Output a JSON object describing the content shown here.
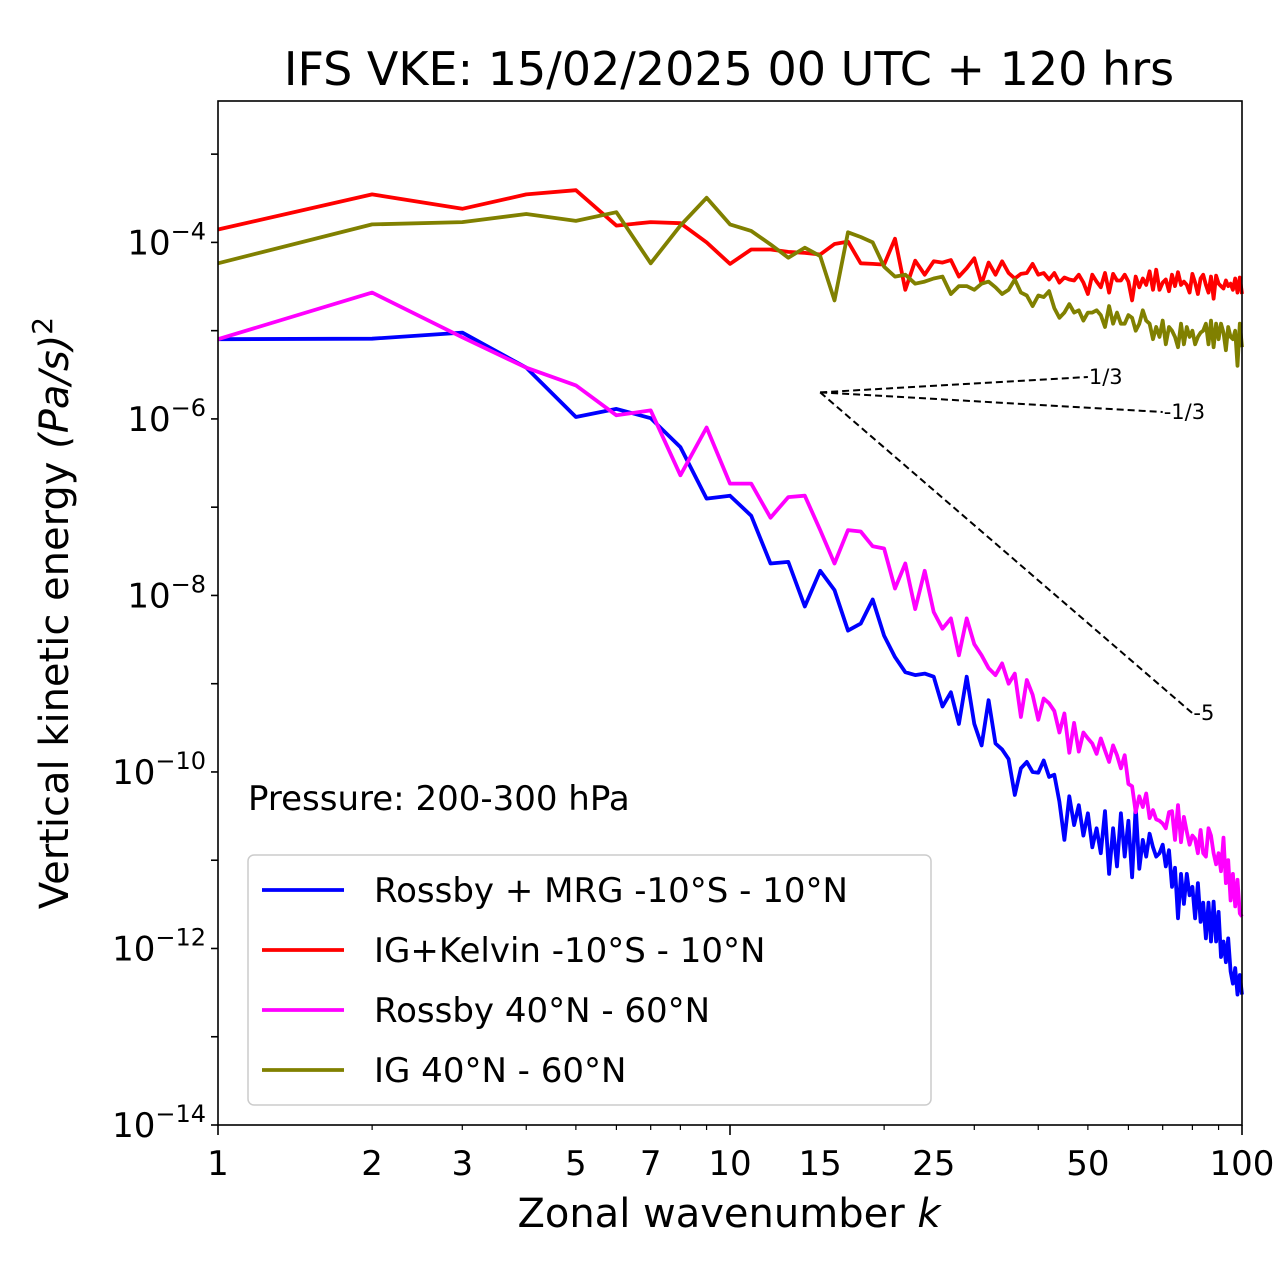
{
  "chart_data": {
    "type": "line",
    "title": "IFS VKE: 15/02/2025 00 UTC + 120 hrs",
    "xlabel": "Zonal wavenumber",
    "xlabel_italic": "k",
    "ylabel": "Vertical kinetic energy",
    "ylabel_unit": "(Pa/s)",
    "ylabel_sup": "2",
    "annotation": "Pressure: 200-300 hPa",
    "x_scale": "log",
    "y_scale": "log",
    "xlim": [
      1,
      100
    ],
    "ylim": [
      1e-14,
      0.004
    ],
    "x_ticks": [
      1,
      2,
      3,
      5,
      7,
      10,
      15,
      25,
      50,
      100
    ],
    "x_tick_labels": [
      "1",
      "2",
      "3",
      "5",
      "7",
      "10",
      "15",
      "25",
      "50",
      "100"
    ],
    "y_ticks": [
      -14,
      -12,
      -10,
      -8,
      -6,
      -4
    ],
    "y_tick_base": "10",
    "y_tick_exponents": [
      "−14",
      "−12",
      "−10",
      "−8",
      "−6",
      "−4"
    ],
    "grid": false,
    "legend_position": "lower-left",
    "series": [
      {
        "name": "Rossby + MRG -10°S - 10°N",
        "color": "#0000ff",
        "x": [
          1,
          2,
          3,
          4,
          5,
          6,
          7,
          8,
          9,
          10,
          11,
          12,
          13,
          14,
          15,
          16,
          17,
          18,
          19,
          20,
          21,
          22,
          23,
          24,
          25,
          26,
          27,
          28,
          29,
          30,
          31,
          32,
          33,
          34,
          35,
          36,
          37,
          38,
          39,
          40,
          41,
          42,
          43,
          44,
          45,
          46,
          47,
          48,
          49,
          50,
          51,
          52,
          53,
          54,
          55,
          56,
          57,
          58,
          59,
          60,
          61,
          62,
          63,
          64,
          65,
          66,
          67,
          68,
          69,
          70,
          71,
          72,
          73,
          74,
          75,
          76,
          77,
          78,
          79,
          80,
          81,
          82,
          83,
          84,
          85,
          86,
          87,
          88,
          89,
          90,
          91,
          92,
          93,
          94,
          95,
          96,
          97,
          98,
          99,
          100
        ],
        "y": [
          8e-06,
          8.1e-06,
          9.5e-06,
          3.8e-06,
          1.05e-06,
          1.3e-06,
          1.02e-06,
          4.8e-07,
          1.25e-07,
          1.35e-07,
          8e-08,
          2.3e-08,
          2.4e-08,
          7.5e-09,
          1.9e-08,
          1.15e-08,
          4e-09,
          4.8e-09,
          9e-09,
          3.5e-09,
          2e-09,
          1.35e-09,
          1.25e-09,
          1.3e-09,
          1.2e-09,
          5.5e-10,
          8e-10,
          3.5e-10,
          1.2e-09,
          3.5e-10,
          2e-10,
          6.5e-10,
          2.1e-10,
          1.8e-10,
          1.4e-10,
          5.5e-11,
          1.1e-10,
          1.3e-10,
          1e-10,
          9.8e-11,
          1.35e-10,
          8.8e-11,
          9.3e-11,
          4.6e-11,
          1.7e-11,
          5.3e-11,
          2.5e-11,
          4.2e-11,
          1.9e-11,
          3.4e-11,
          1.4e-11,
          2.3e-11,
          1.2e-11,
          3.6e-11,
          7e-12,
          2.3e-11,
          8.5e-12,
          3.4e-11,
          1.1e-11,
          2.8e-11,
          6.4e-12,
          4.1e-11,
          8e-12,
          1.7e-11,
          1.1e-11,
          2e-11,
          1.4e-11,
          1.1e-11,
          1.2e-11,
          1.5e-11,
          8.5e-12,
          1.3e-11,
          5e-12,
          8.2e-12,
          2.2e-12,
          7e-12,
          3.2e-12,
          7e-12,
          4e-12,
          5e-12,
          2.2e-12,
          5.5e-12,
          2e-12,
          3.3e-12,
          1.3e-12,
          3.3e-12,
          1.2e-12,
          3.4e-12,
          1.2e-12,
          2.6e-12,
          8e-13,
          1.2e-12,
          7e-13,
          1.3e-12,
          5.5e-13,
          4e-13,
          6e-13,
          3e-13,
          5e-13,
          3e-13
        ]
      },
      {
        "name": "IG+Kelvin -10°S - 10°N",
        "color": "#ff0000",
        "x": [
          1,
          2,
          3,
          4,
          5,
          6,
          7,
          8,
          9,
          10,
          11,
          12,
          13,
          14,
          15,
          16,
          17,
          18,
          19,
          20,
          21,
          22,
          23,
          24,
          25,
          26,
          27,
          28,
          29,
          30,
          31,
          32,
          33,
          34,
          35,
          36,
          37,
          38,
          39,
          40,
          41,
          42,
          43,
          44,
          45,
          46,
          47,
          48,
          49,
          50,
          51,
          52,
          53,
          54,
          55,
          56,
          57,
          58,
          59,
          60,
          61,
          62,
          63,
          64,
          65,
          66,
          67,
          68,
          69,
          70,
          71,
          72,
          73,
          74,
          75,
          76,
          77,
          78,
          79,
          80,
          81,
          82,
          83,
          84,
          85,
          86,
          87,
          88,
          89,
          90,
          91,
          92,
          93,
          94,
          95,
          96,
          97,
          98,
          99,
          100
        ],
        "y": [
          0.00014,
          0.00035,
          0.00024,
          0.00035,
          0.00039,
          0.000155,
          0.00017,
          0.000165,
          0.0001,
          5.7e-05,
          8.3e-05,
          8.3e-05,
          7.8e-05,
          7.6e-05,
          7.3e-05,
          9.6e-05,
          0.000102,
          5.8e-05,
          5.7e-05,
          5.6e-05,
          0.00011,
          2.9e-05,
          6.2e-05,
          4.3e-05,
          6.1e-05,
          5.9e-05,
          6.3e-05,
          4.1e-05,
          5.1e-05,
          6.6e-05,
          3.4e-05,
          5.9e-05,
          4.3e-05,
          6.1e-05,
          4.5e-05,
          3.9e-05,
          4.4e-05,
          4.5e-05,
          5.7e-05,
          4.3e-05,
          4.5e-05,
          3.8e-05,
          4.5e-05,
          3.5e-05,
          4e-05,
          3.8e-05,
          3.7e-05,
          4.3e-05,
          3.5e-05,
          2.6e-05,
          4.3e-05,
          3.6e-05,
          3.1e-05,
          4.5e-05,
          2.7e-05,
          4.4e-05,
          3.7e-05,
          3.7e-05,
          4.3e-05,
          3.6e-05,
          2.2e-05,
          4.1e-05,
          3.1e-05,
          3.9e-05,
          3.3e-05,
          4.7e-05,
          2.9e-05,
          4.9e-05,
          2.9e-05,
          3.5e-05,
          3.8e-05,
          2.8e-05,
          4.3e-05,
          3.2e-05,
          4.6e-05,
          3.3e-05,
          3.6e-05,
          3.3e-05,
          2.7e-05,
          4.4e-05,
          3.5e-05,
          2.6e-05,
          3.9e-05,
          4.3e-05,
          3.3e-05,
          2.7e-05,
          4.1e-05,
          2.3e-05,
          4.2e-05,
          3.4e-05,
          3.2e-05,
          3e-05,
          3.7e-05,
          3.2e-05,
          3.4e-05,
          2.9e-05,
          3.9e-05,
          2.7e-05,
          4e-05,
          2.6e-05
        ]
      },
      {
        "name": "Rossby 40°N - 60°N",
        "color": "#ff00ff",
        "x": [
          1,
          2,
          3,
          4,
          5,
          6,
          7,
          8,
          9,
          10,
          11,
          12,
          13,
          14,
          15,
          16,
          17,
          18,
          19,
          20,
          21,
          22,
          23,
          24,
          25,
          26,
          27,
          28,
          29,
          30,
          31,
          32,
          33,
          34,
          35,
          36,
          37,
          38,
          39,
          40,
          41,
          42,
          43,
          44,
          45,
          46,
          47,
          48,
          49,
          50,
          51,
          52,
          53,
          54,
          55,
          56,
          57,
          58,
          59,
          60,
          61,
          62,
          63,
          64,
          65,
          66,
          67,
          68,
          69,
          70,
          71,
          72,
          73,
          74,
          75,
          76,
          77,
          78,
          79,
          80,
          81,
          82,
          83,
          84,
          85,
          86,
          87,
          88,
          89,
          90,
          91,
          92,
          93,
          94,
          95,
          96,
          97,
          98,
          99,
          100
        ],
        "y": [
          8e-06,
          2.7e-05,
          8.4e-06,
          3.8e-06,
          2.4e-06,
          1.1e-06,
          1.25e-06,
          2.3e-07,
          8e-07,
          1.85e-07,
          1.85e-07,
          7.6e-08,
          1.3e-07,
          1.35e-07,
          5.5e-08,
          2.3e-08,
          5.5e-08,
          5.3e-08,
          3.6e-08,
          3.4e-08,
          1.2e-08,
          2.3e-08,
          7e-09,
          1.9e-08,
          6.5e-09,
          4.2e-09,
          5.5e-09,
          2.1e-09,
          5.5e-09,
          2.8e-09,
          2.1e-09,
          1.5e-09,
          1.25e-09,
          1.7e-09,
          1e-09,
          1.3e-09,
          4.2e-10,
          1.1e-09,
          7.5e-10,
          3.9e-10,
          6.8e-10,
          6e-10,
          4.9e-10,
          2.8e-10,
          4.6e-10,
          1.65e-10,
          3.6e-10,
          1.7e-10,
          2.8e-10,
          2.4e-10,
          2.1e-10,
          1.6e-10,
          2.4e-10,
          1.75e-10,
          1.3e-10,
          2e-10,
          1.55e-10,
          1.1e-10,
          1.55e-10,
          7.3e-11,
          6.9e-11,
          3.5e-11,
          5.3e-11,
          4e-11,
          5.7e-11,
          3e-11,
          3.7e-11,
          2.9e-11,
          2.8e-11,
          2.6e-11,
          2.3e-11,
          3.5e-11,
          3.6e-11,
          1.7e-11,
          4.2e-11,
          1.6e-11,
          3.1e-11,
          2.1e-11,
          1.5e-11,
          1.9e-11,
          1.75e-11,
          1.2e-11,
          2.2e-11,
          1.2e-11,
          1.1e-11,
          2.3e-11,
          1.9e-11,
          1.2e-11,
          9e-12,
          1.2e-11,
          7.5e-12,
          1.8e-11,
          5.5e-12,
          1e-11,
          3.5e-12,
          7e-12,
          3e-12,
          6e-12,
          2.5e-12,
          2.3e-12
        ]
      },
      {
        "name": "IG 40°N - 60°N",
        "color": "#808000",
        "x": [
          1,
          2,
          3,
          4,
          5,
          6,
          7,
          8,
          9,
          10,
          11,
          12,
          13,
          14,
          15,
          16,
          17,
          18,
          19,
          20,
          21,
          22,
          23,
          24,
          25,
          26,
          27,
          28,
          29,
          30,
          31,
          32,
          33,
          34,
          35,
          36,
          37,
          38,
          39,
          40,
          41,
          42,
          43,
          44,
          45,
          46,
          47,
          48,
          49,
          50,
          51,
          52,
          53,
          54,
          55,
          56,
          57,
          58,
          59,
          60,
          61,
          62,
          63,
          64,
          65,
          66,
          67,
          68,
          69,
          70,
          71,
          72,
          73,
          74,
          75,
          76,
          77,
          78,
          79,
          80,
          81,
          82,
          83,
          84,
          85,
          86,
          87,
          88,
          89,
          90,
          91,
          92,
          93,
          94,
          95,
          96,
          97,
          98,
          99,
          100
        ],
        "y": [
          5.8e-05,
          0.00016,
          0.00017,
          0.00021,
          0.000175,
          0.00022,
          5.8e-05,
          0.000155,
          0.00032,
          0.00016,
          0.000135,
          9.5e-05,
          6.7e-05,
          8.7e-05,
          7e-05,
          2.2e-05,
          0.00013,
          0.000115,
          0.0001,
          5.3e-05,
          4.1e-05,
          4.3e-05,
          3.4e-05,
          3.6e-05,
          3.9e-05,
          4.1e-05,
          2.6e-05,
          3.2e-05,
          3.2e-05,
          2.9e-05,
          3.4e-05,
          3.6e-05,
          3.1e-05,
          2.6e-05,
          2.9e-05,
          3.8e-05,
          2.7e-05,
          2.5e-05,
          1.9e-05,
          2.5e-05,
          2.4e-05,
          2.8e-05,
          1.8e-05,
          1.4e-05,
          1.6e-05,
          2e-05,
          1.6e-05,
          1.7e-05,
          1.3e-05,
          1.6e-05,
          1.6e-05,
          1.7e-05,
          1.5e-05,
          1.1e-05,
          1.9e-05,
          1.2e-05,
          1.6e-05,
          1.2e-05,
          1.2e-05,
          1.5e-05,
          1.4e-05,
          1e-05,
          1.2e-05,
          1.7e-05,
          1.3e-05,
          1.2e-05,
          8e-06,
          1.1e-05,
          8.5e-06,
          1.3e-05,
          7e-06,
          1.1e-05,
          1e-05,
          8.5e-06,
          6.5e-06,
          1.2e-05,
          7e-06,
          1.1e-05,
          8.5e-06,
          1e-05,
          7e-06,
          8.5e-06,
          9.5e-06,
          1e-05,
          1.2e-05,
          7e-06,
          1.3e-05,
          6.5e-06,
          1.2e-05,
          8e-06,
          1.2e-05,
          9.5e-06,
          6e-06,
          1.1e-05,
          8.5e-06,
          8e-06,
          1e-05,
          4e-06,
          1.2e-05,
          6.5e-06
        ]
      }
    ],
    "reference_slopes": [
      {
        "label": "1/3",
        "slope": 0.3333,
        "x0": 15,
        "y0": 2e-06,
        "x1": 50
      },
      {
        "label": "-1/3",
        "slope": -0.3333,
        "x0": 15,
        "y0": 2e-06,
        "x1": 70
      },
      {
        "label": "-5",
        "slope": -5,
        "x0": 15,
        "y0": 2e-06,
        "x1": 80
      }
    ]
  }
}
